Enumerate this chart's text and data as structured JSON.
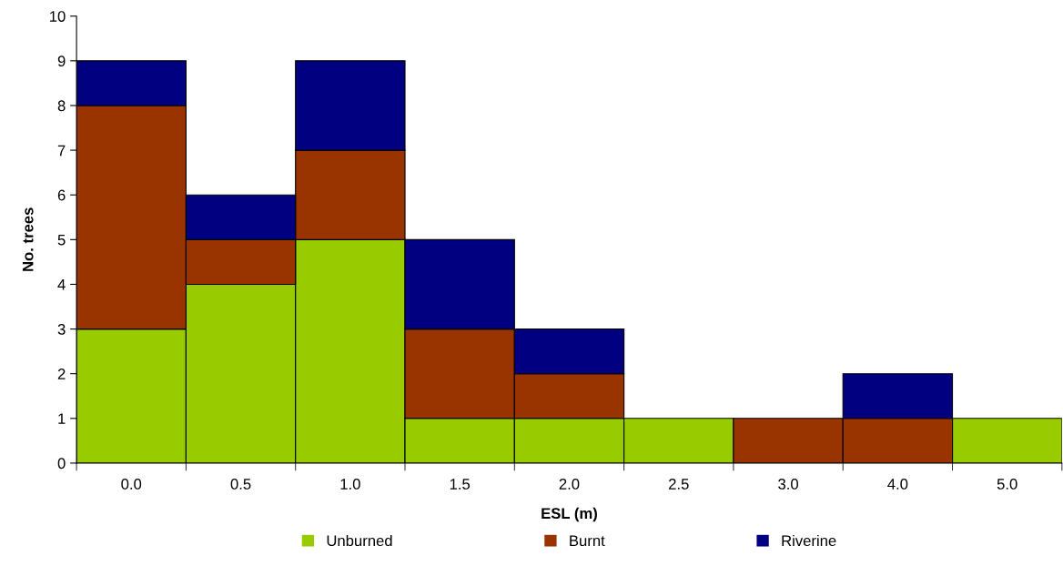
{
  "chart_data": {
    "type": "bar",
    "stacked": true,
    "xlabel": "ESL (m)",
    "ylabel": "No. trees",
    "categories": [
      "0.0",
      "0.5",
      "1.0",
      "1.5",
      "2.0",
      "2.5",
      "3.0",
      "4.0",
      "5.0"
    ],
    "series": [
      {
        "name": "Unburned",
        "color": "#99cc00",
        "values": [
          3,
          4,
          5,
          1,
          1,
          1,
          0,
          0,
          1
        ]
      },
      {
        "name": "Burnt",
        "color": "#993300",
        "values": [
          5,
          1,
          2,
          2,
          1,
          0,
          1,
          1,
          0
        ]
      },
      {
        "name": "Riverine",
        "color": "#000080",
        "values": [
          1,
          1,
          2,
          2,
          1,
          0,
          0,
          1,
          0
        ]
      }
    ],
    "ylim": [
      0,
      10
    ],
    "yticks": [
      0,
      1,
      2,
      3,
      4,
      5,
      6,
      7,
      8,
      9,
      10
    ],
    "grid": false,
    "legend": "bottom"
  }
}
